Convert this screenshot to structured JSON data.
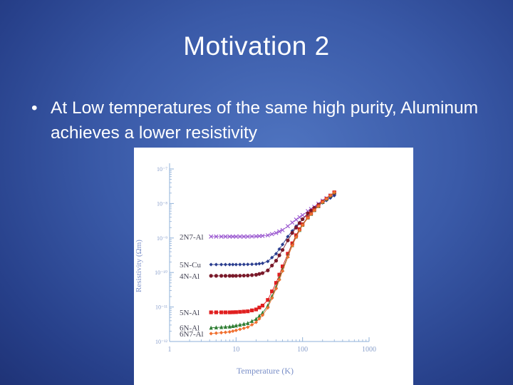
{
  "slide": {
    "title": "Motivation 2",
    "bullet": "At Low temperatures of the same high purity, Aluminum achieves a lower resistivity"
  },
  "chart_data": {
    "type": "scatter",
    "xlabel": "Temperature (K)",
    "ylabel": "Resistivity (Ωm)",
    "xscale": "log",
    "yscale": "log",
    "xlim": [
      1,
      1000
    ],
    "ylim": [
      1e-12,
      1e-07
    ],
    "x_ticks": [
      {
        "value": 1,
        "label": "1"
      },
      {
        "value": 10,
        "label": "10"
      },
      {
        "value": 100,
        "label": "100"
      },
      {
        "value": 1000,
        "label": "1000"
      }
    ],
    "y_ticks": [
      {
        "value": 1e-07,
        "label": "10⁻⁷"
      },
      {
        "value": 1e-08,
        "label": "10⁻⁸"
      },
      {
        "value": 1e-09,
        "label": "10⁻⁹"
      },
      {
        "value": 1e-10,
        "label": "10⁻¹⁰"
      },
      {
        "value": 1e-11,
        "label": "10⁻¹¹"
      },
      {
        "value": 1e-12,
        "label": "10⁻¹²"
      }
    ],
    "grid": false,
    "legend": "inline labels on the left of each curve",
    "series": [
      {
        "name": "2N7-Al",
        "color": "#9b59d0",
        "marker": "cross",
        "x": [
          4.2,
          6,
          8,
          10,
          15,
          20,
          25,
          30,
          40,
          50,
          60,
          70,
          80,
          90,
          100,
          120,
          150,
          200,
          300
        ],
        "y": [
          1.1e-09,
          1.1e-09,
          1.1e-09,
          1.1e-09,
          1.1e-09,
          1.12e-09,
          1.15e-09,
          1.2e-09,
          1.4e-09,
          1.7e-09,
          2.2e-09,
          2.8e-09,
          3.4e-09,
          4e-09,
          4.6e-09,
          6e-09,
          8e-09,
          1.2e-08,
          2e-08
        ]
      },
      {
        "name": "5N-Cu",
        "color": "#2a3d8f",
        "marker": "diamond",
        "x": [
          4.2,
          6,
          8,
          10,
          15,
          20,
          25,
          30,
          40,
          50,
          60,
          70,
          80,
          90,
          100,
          120,
          150,
          200,
          300
        ],
        "y": [
          1.7e-10,
          1.7e-10,
          1.7e-10,
          1.7e-10,
          1.72e-10,
          1.75e-10,
          1.85e-10,
          2.1e-10,
          3.5e-10,
          6.5e-10,
          1.1e-09,
          1.6e-09,
          2.2e-09,
          2.8e-09,
          3.5e-09,
          5e-09,
          7e-09,
          1.05e-08,
          1.7e-08
        ]
      },
      {
        "name": "4N-Al",
        "color": "#7a1a2a",
        "marker": "circle",
        "x": [
          4.2,
          6,
          8,
          10,
          15,
          20,
          25,
          30,
          40,
          50,
          60,
          70,
          80,
          90,
          100,
          120,
          150,
          200,
          300
        ],
        "y": [
          8e-11,
          8e-11,
          8e-11,
          8e-11,
          8.2e-11,
          8.6e-11,
          9.6e-11,
          1.15e-10,
          2.2e-10,
          4.5e-10,
          8.5e-10,
          1.4e-09,
          2e-09,
          2.7e-09,
          3.5e-09,
          5.2e-09,
          7.5e-09,
          1.15e-08,
          2e-08
        ]
      },
      {
        "name": "5N-Al",
        "color": "#e02020",
        "marker": "square",
        "x": [
          4.2,
          6,
          8,
          10,
          15,
          20,
          25,
          30,
          40,
          50,
          60,
          70,
          80,
          90,
          100,
          120,
          150,
          200,
          300
        ],
        "y": [
          7e-12,
          7e-12,
          7e-12,
          7.1e-12,
          7.5e-12,
          8.5e-12,
          1.1e-11,
          1.6e-11,
          5e-11,
          1.5e-10,
          3.5e-10,
          7e-10,
          1.2e-09,
          1.8e-09,
          2.5e-09,
          4e-09,
          6.5e-09,
          1.1e-08,
          2.1e-08
        ]
      },
      {
        "name": "6N-Al",
        "color": "#2e7d32",
        "marker": "triangle",
        "x": [
          4.2,
          6,
          8,
          10,
          15,
          20,
          25,
          30,
          40,
          50,
          60,
          70,
          80,
          90,
          100,
          120,
          150,
          200,
          300
        ],
        "y": [
          2.5e-12,
          2.6e-12,
          2.7e-12,
          2.9e-12,
          3.4e-12,
          4.5e-12,
          6.8e-12,
          1.1e-11,
          3.8e-11,
          1.2e-10,
          3e-10,
          6.2e-10,
          1.1e-09,
          1.7e-09,
          2.4e-09,
          3.9e-09,
          6.4e-09,
          1.1e-08,
          2.1e-08
        ]
      },
      {
        "name": "6N7-Al",
        "color": "#f07030",
        "marker": "diamond",
        "x": [
          4.2,
          6,
          8,
          10,
          15,
          20,
          25,
          30,
          40,
          50,
          60,
          70,
          80,
          90,
          100,
          120,
          150,
          200,
          300
        ],
        "y": [
          1.7e-12,
          1.8e-12,
          1.9e-12,
          2.1e-12,
          2.6e-12,
          3.6e-12,
          5.8e-12,
          9.5e-12,
          3.4e-11,
          1.1e-10,
          2.8e-10,
          6e-10,
          1.05e-09,
          1.65e-09,
          2.35e-09,
          3.8e-09,
          6.3e-09,
          1.1e-08,
          2.1e-08
        ]
      }
    ]
  }
}
